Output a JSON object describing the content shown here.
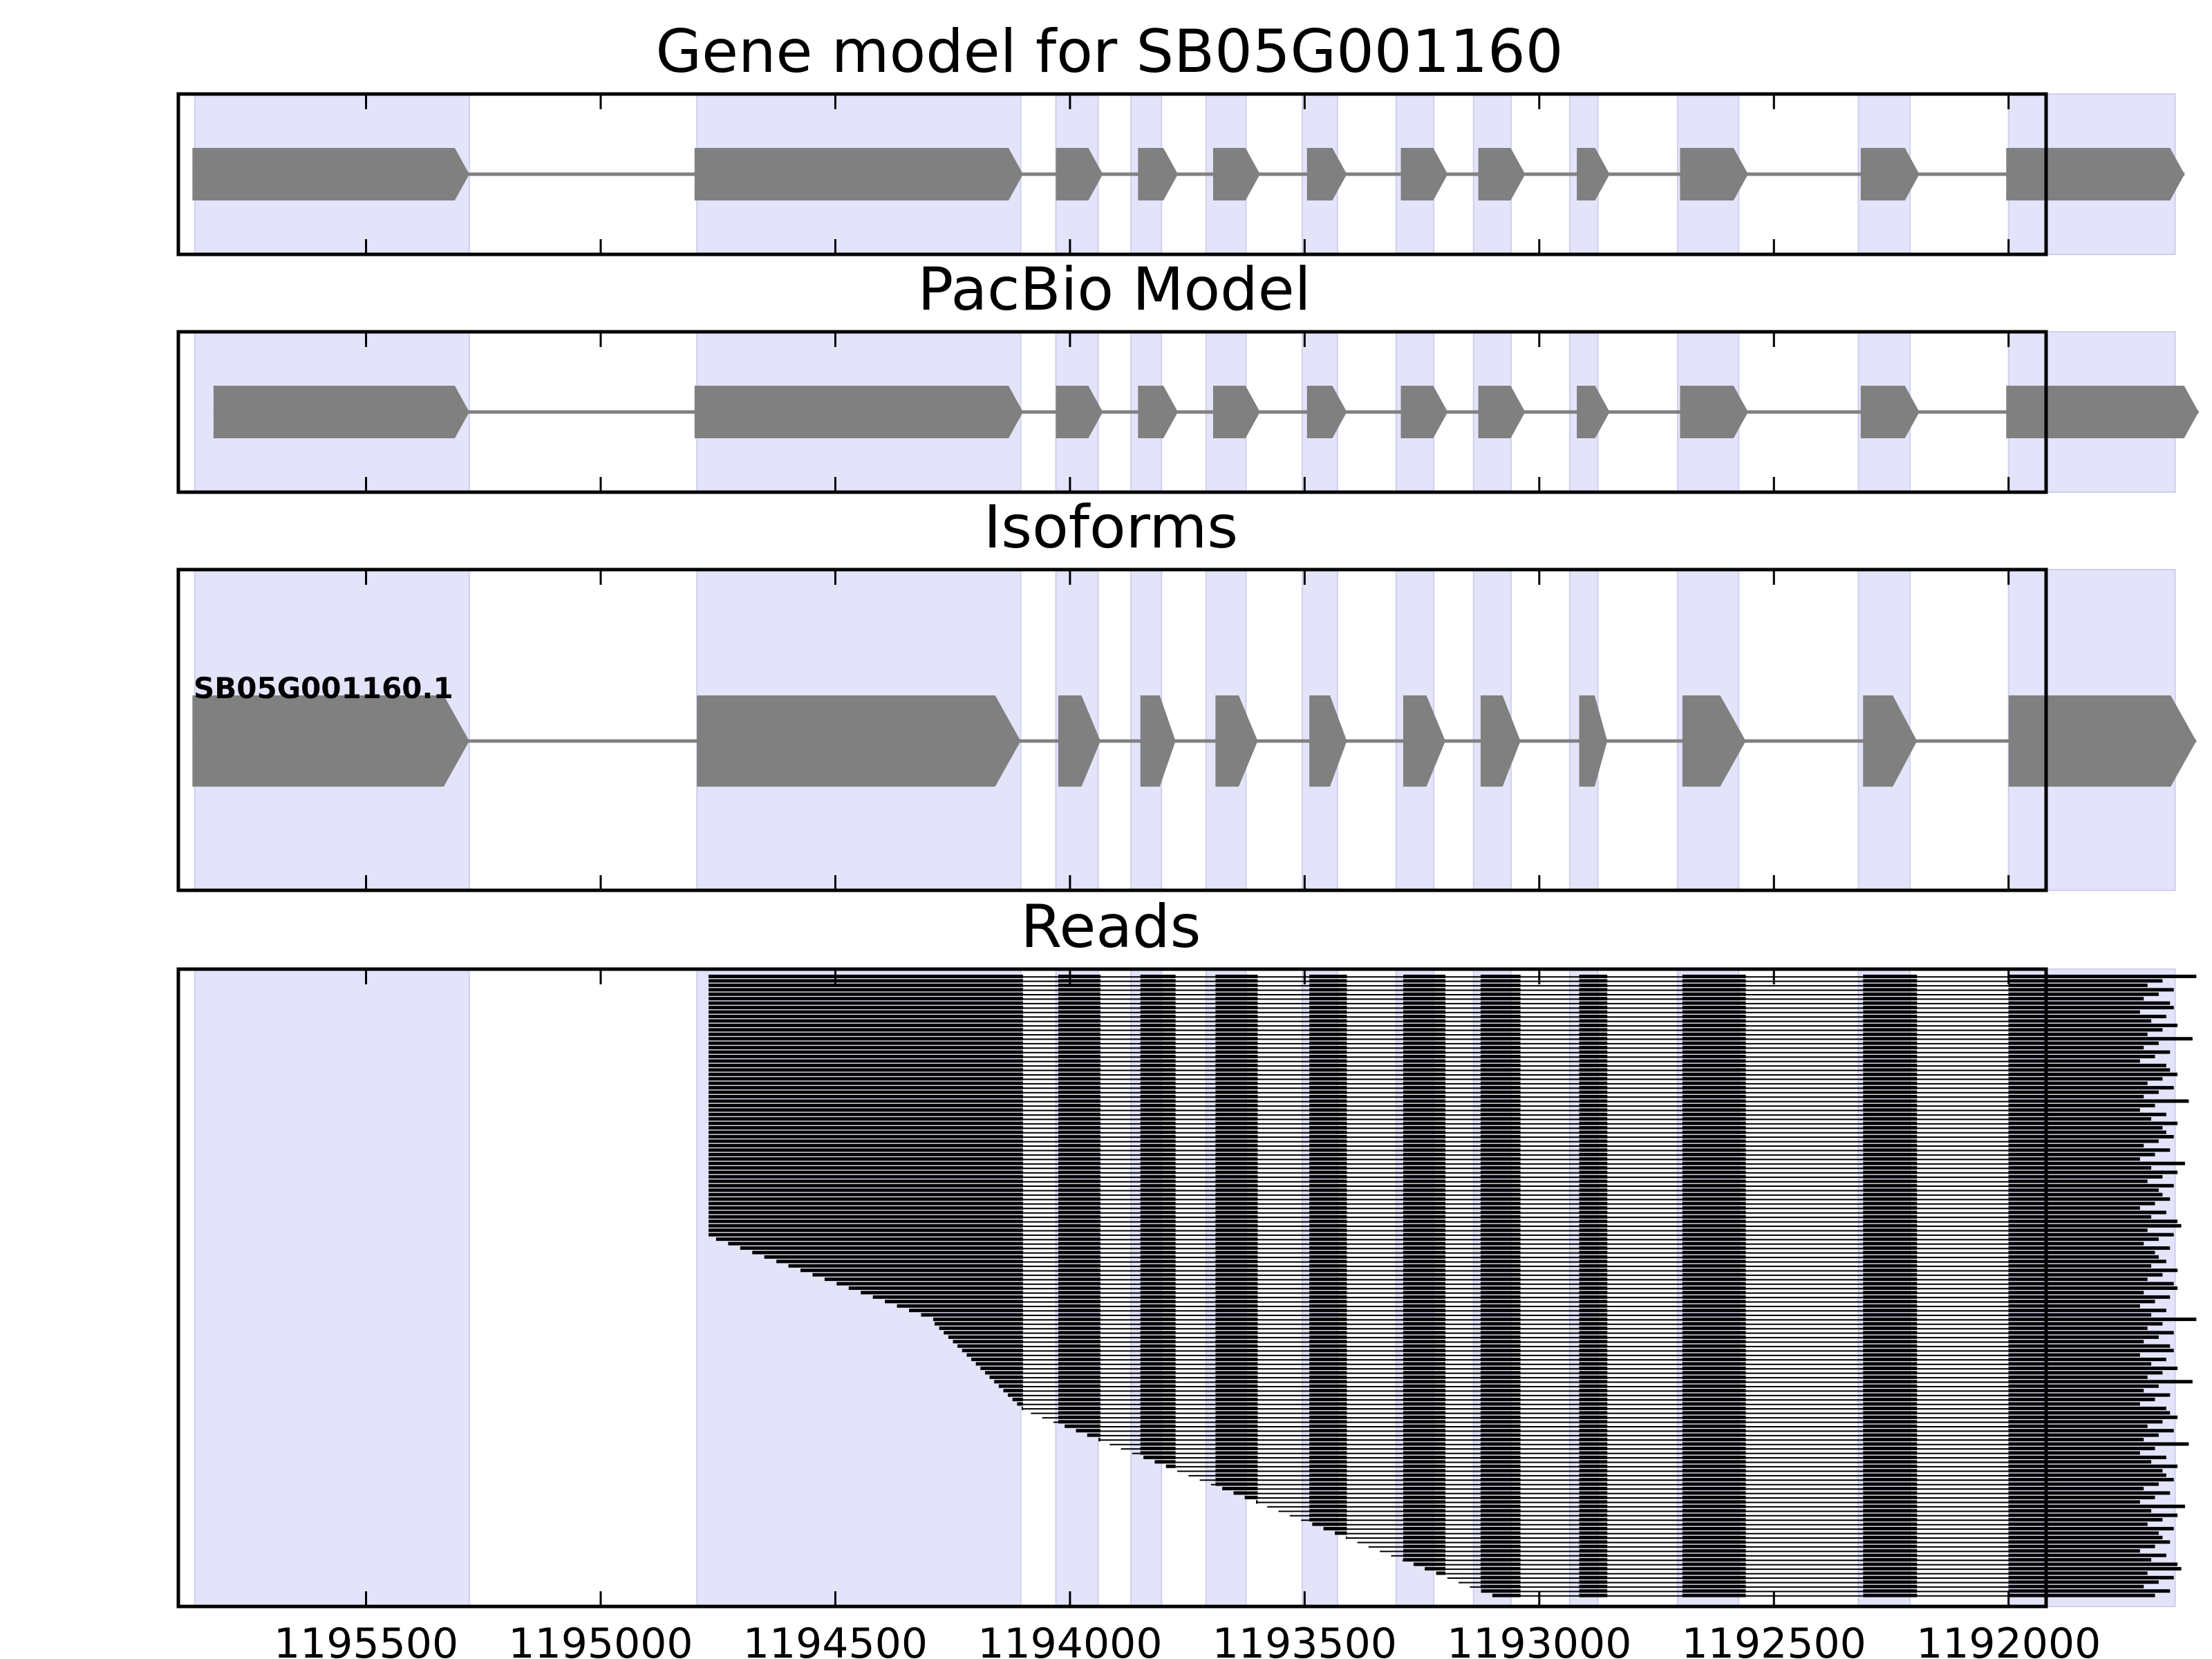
{
  "figure": {
    "panels": [
      {
        "id": "gene-model",
        "title": "Gene model for SB05G001160"
      },
      {
        "id": "pacbio-model",
        "title": "PacBio Model"
      },
      {
        "id": "isoforms",
        "title": "Isoforms",
        "isoform_label": "SB05G001160.1"
      },
      {
        "id": "reads",
        "title": "Reads"
      }
    ],
    "x_axis": {
      "range": [
        1195900,
        1191920
      ],
      "reversed": true,
      "tick_values": [
        1195500,
        1195000,
        1194500,
        1194000,
        1193500,
        1193000,
        1192500,
        1192000
      ],
      "tick_labels": [
        "1195500",
        "1195000",
        "1194500",
        "1194000",
        "1193500",
        "1193000",
        "1192500",
        "1192000"
      ]
    },
    "exon_shading": [
      [
        1195865,
        1195280
      ],
      [
        1194795,
        1194105
      ],
      [
        1194030,
        1193940
      ],
      [
        1193870,
        1193805
      ],
      [
        1193710,
        1193625
      ],
      [
        1193505,
        1193430
      ],
      [
        1193305,
        1193225
      ],
      [
        1193140,
        1193060
      ],
      [
        1192935,
        1192875
      ],
      [
        1192705,
        1192575
      ],
      [
        1192320,
        1192210
      ],
      [
        1192000,
        1191645
      ]
    ],
    "gene_model_exons": [
      [
        1195870,
        1195280
      ],
      [
        1194800,
        1194100
      ],
      [
        1194030,
        1193930
      ],
      [
        1193855,
        1193770
      ],
      [
        1193695,
        1193595
      ],
      [
        1193495,
        1193410
      ],
      [
        1193295,
        1193195
      ],
      [
        1193130,
        1193030
      ],
      [
        1192920,
        1192850
      ],
      [
        1192700,
        1192555
      ],
      [
        1192315,
        1192190
      ],
      [
        1192005,
        1191625
      ]
    ],
    "pacbio_exons": [
      [
        1195825,
        1195280
      ],
      [
        1194800,
        1194100
      ],
      [
        1194030,
        1193930
      ],
      [
        1193855,
        1193770
      ],
      [
        1193695,
        1193595
      ],
      [
        1193495,
        1193410
      ],
      [
        1193295,
        1193195
      ],
      [
        1193130,
        1193030
      ],
      [
        1192920,
        1192850
      ],
      [
        1192700,
        1192555
      ],
      [
        1192315,
        1192190
      ],
      [
        1192005,
        1191595
      ]
    ],
    "isoform_exons": [
      [
        1195870,
        1195280
      ],
      [
        1194795,
        1194105
      ],
      [
        1194025,
        1193935
      ],
      [
        1193850,
        1193775
      ],
      [
        1193690,
        1193600
      ],
      [
        1193490,
        1193410
      ],
      [
        1193290,
        1193200
      ],
      [
        1193125,
        1193040
      ],
      [
        1192915,
        1192855
      ],
      [
        1192695,
        1192560
      ],
      [
        1192310,
        1192195
      ],
      [
        1192000,
        1191600
      ]
    ],
    "read_exon_ends": [
      1194100,
      1193935,
      1193775,
      1193600,
      1193410,
      1193200,
      1193040,
      1192855,
      1192560,
      1192195
    ],
    "read_exon_starts": [
      1194025,
      1193850,
      1193690,
      1193490,
      1193290,
      1193125,
      1192915,
      1192695,
      1192310,
      1192000
    ],
    "read_count": 140,
    "colors": {
      "exon_fill": "#808080",
      "intron_line": "#808080",
      "shading": "#e3e3fa",
      "shading_edge": "#cfcff0",
      "reads": "#000000",
      "frame": "#000000"
    }
  }
}
